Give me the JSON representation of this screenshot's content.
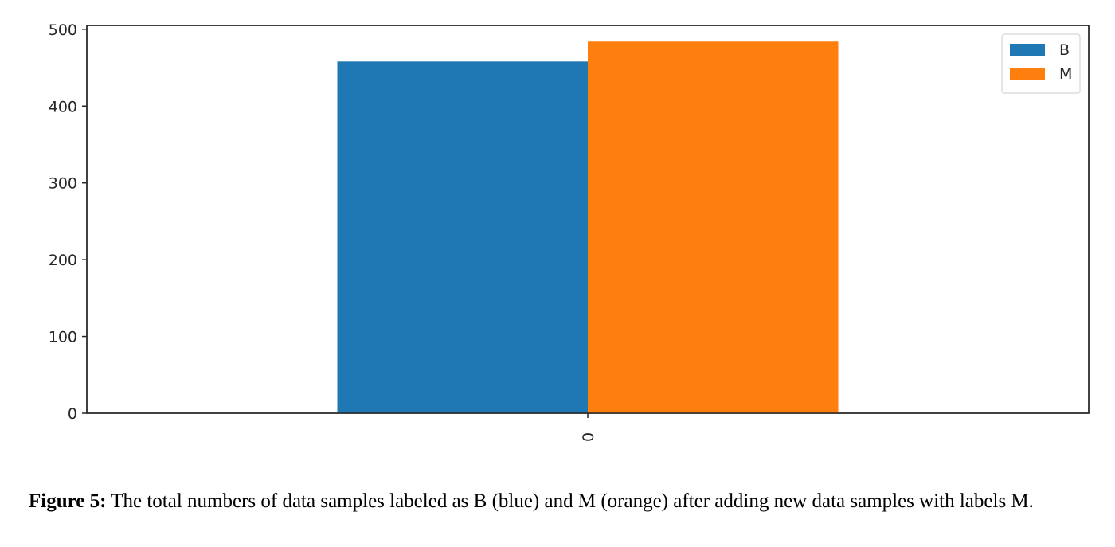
{
  "chart_data": {
    "type": "bar",
    "categories": [
      "0"
    ],
    "series": [
      {
        "name": "B",
        "values": [
          458
        ],
        "color": "#1f77b4"
      },
      {
        "name": "M",
        "values": [
          484
        ],
        "color": "#ff7f0e"
      }
    ],
    "ylim": [
      0,
      505
    ],
    "yticks": [
      0,
      100,
      200,
      300,
      400,
      500
    ],
    "xlabel": "",
    "ylabel": "",
    "grid": false,
    "legend_position": "top-right"
  },
  "caption": {
    "label": "Figure 5:",
    "text": " The total numbers of data samples labeled as B (blue) and M (orange) after adding new data samples with labels M."
  }
}
